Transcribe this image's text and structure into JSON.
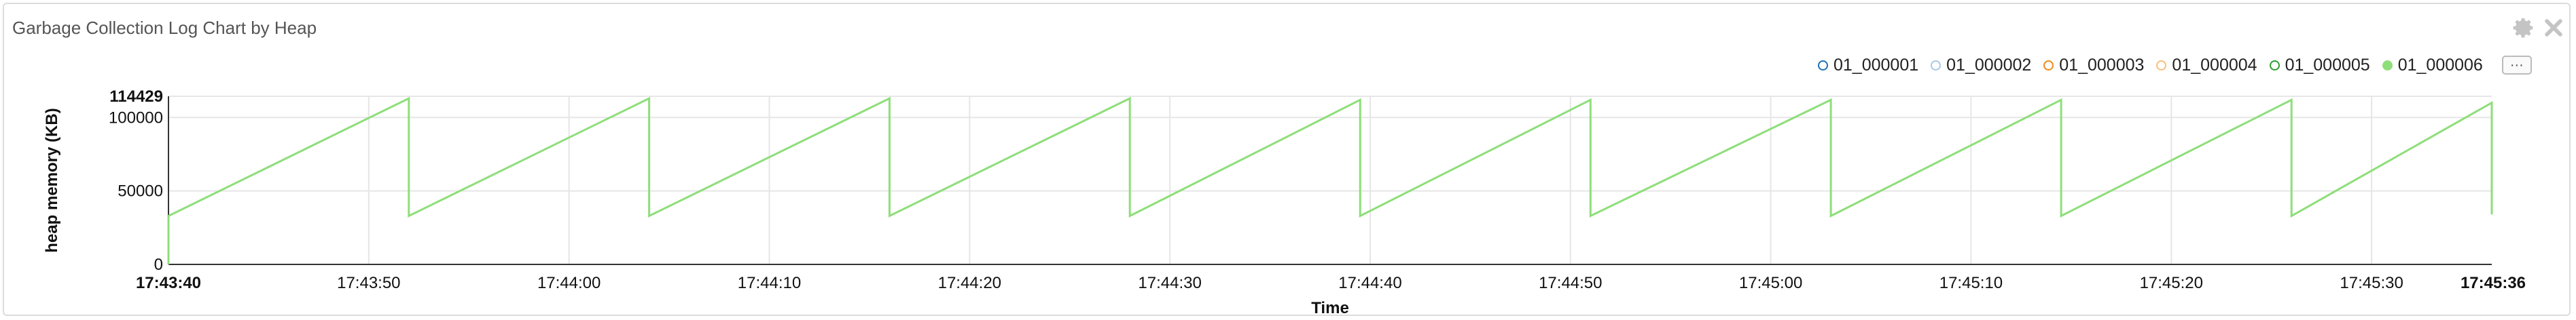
{
  "panel": {
    "title": "Garbage Collection Log Chart by Heap",
    "icons": [
      "gear-icon",
      "close-icon"
    ]
  },
  "legend": {
    "more_label": "···",
    "items": [
      {
        "label": "01_000001",
        "color": "#1f6fb5",
        "filled": false
      },
      {
        "label": "01_000002",
        "color": "#a9c8e8",
        "filled": false
      },
      {
        "label": "01_000003",
        "color": "#f0891a",
        "filled": false
      },
      {
        "label": "01_000004",
        "color": "#f8c07a",
        "filled": false
      },
      {
        "label": "01_000005",
        "color": "#2e9e2e",
        "filled": false
      },
      {
        "label": "01_000006",
        "color": "#8ede7a",
        "filled": true
      }
    ]
  },
  "chart_data": {
    "type": "line",
    "title": "",
    "xlabel": "Time",
    "ylabel": "heap memory (KB)",
    "ylim": [
      0,
      114429
    ],
    "xlim_seconds": [
      0,
      116
    ],
    "x_start_label": "17:43:40",
    "x_end_label": "17:45:36",
    "x_ticks": [
      "17:43:50",
      "17:44:00",
      "17:44:10",
      "17:44:20",
      "17:44:30",
      "17:44:40",
      "17:44:50",
      "17:45:00",
      "17:45:10",
      "17:45:20",
      "17:45:30"
    ],
    "y_ticks": [
      0,
      50000,
      100000
    ],
    "y_max_label": "114429",
    "grid": true,
    "series": [
      {
        "name": "01_000006",
        "color": "#8ede7a",
        "x": [
          "17:43:40",
          "17:43:40",
          "17:43:52",
          "17:43:52",
          "17:44:04",
          "17:44:04",
          "17:44:16",
          "17:44:16",
          "17:44:28",
          "17:44:28",
          "17:44:39.5",
          "17:44:39.5",
          "17:44:51",
          "17:44:51",
          "17:45:03",
          "17:45:03",
          "17:45:14.5",
          "17:45:14.5",
          "17:45:26",
          "17:45:26",
          "17:45:36",
          "17:45:36"
        ],
        "values": [
          0,
          33000,
          113000,
          33000,
          113000,
          33000,
          113000,
          33000,
          113000,
          33000,
          112000,
          33000,
          112000,
          33000,
          112000,
          33000,
          112000,
          33000,
          112000,
          33000,
          110000,
          34000
        ]
      }
    ]
  }
}
